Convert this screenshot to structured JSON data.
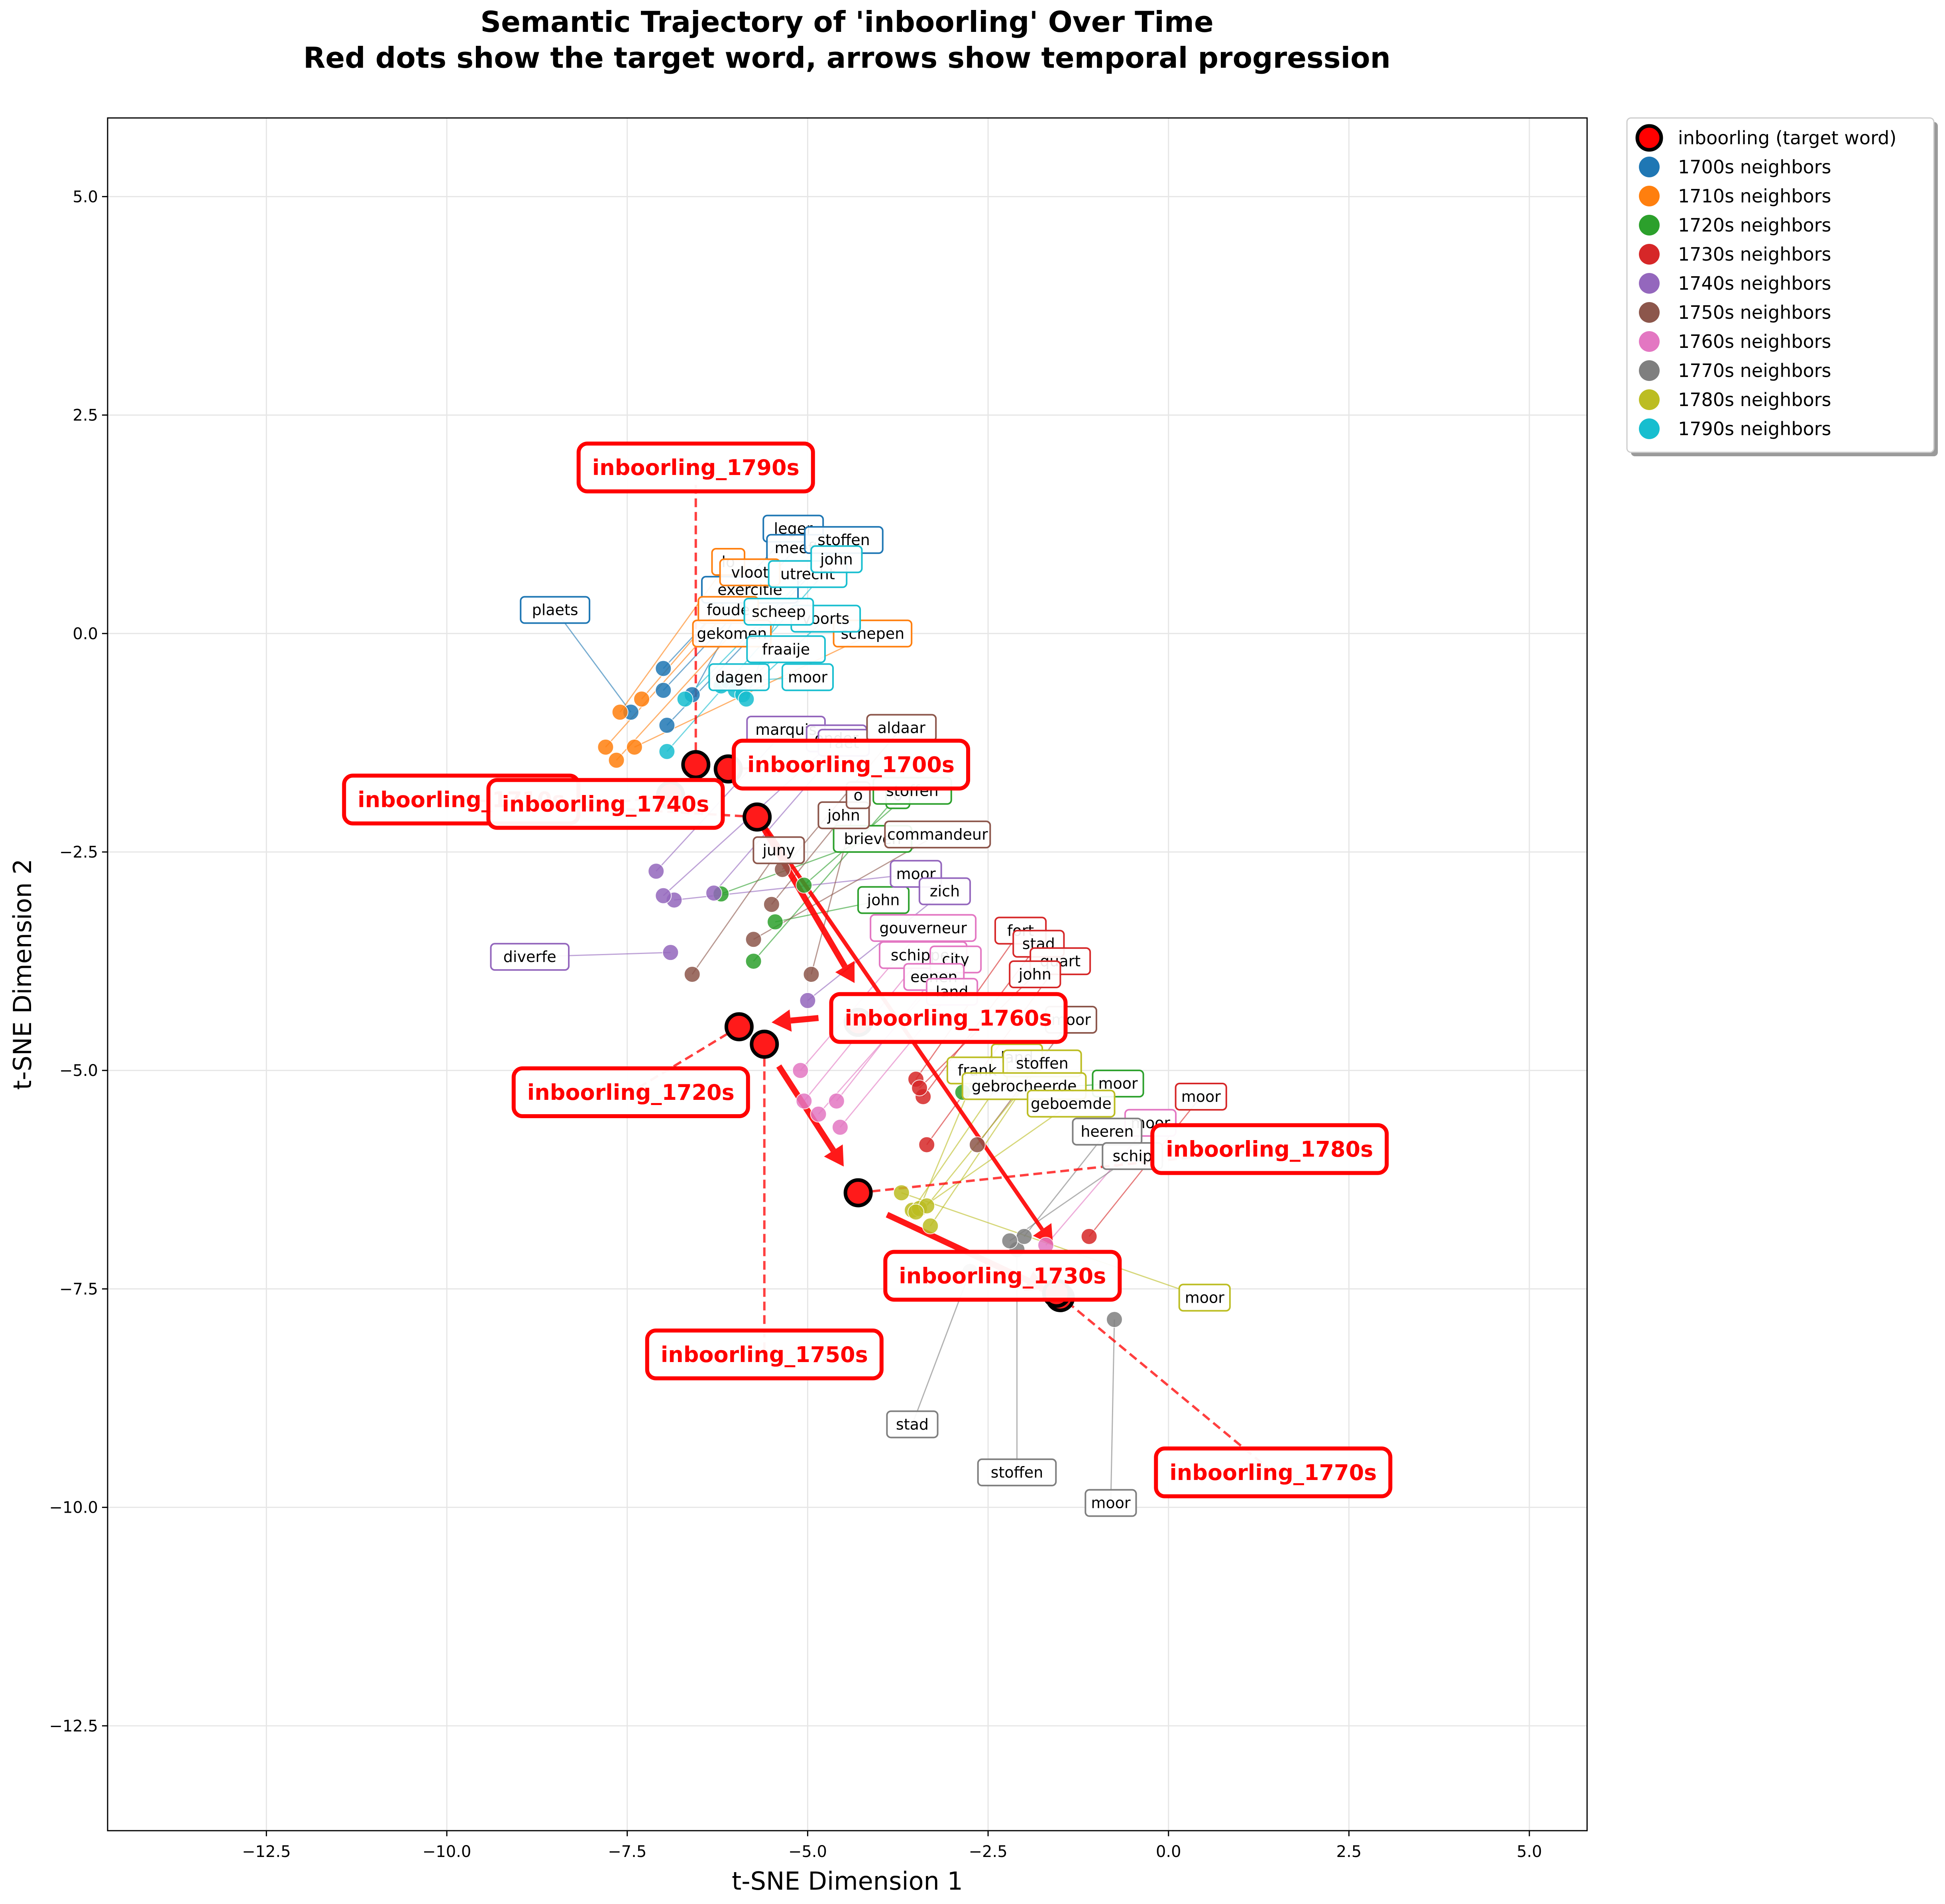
{
  "chart_data": {
    "type": "scatter",
    "title_line1": "Semantic Trajectory of 'inboorling' Over Time",
    "title_line2": "Red dots show the target word, arrows show temporal progression",
    "xlabel": "t-SNE Dimension 1",
    "ylabel": "t-SNE Dimension 2",
    "xlim": [
      -14.7,
      5.8
    ],
    "ylim": [
      -13.7,
      5.9
    ],
    "xticks": [
      -12.5,
      -10.0,
      -7.5,
      -5.0,
      -2.5,
      0.0,
      2.5,
      5.0
    ],
    "xtick_labels": [
      "−12.5",
      "−10.0",
      "−7.5",
      "−5.0",
      "−2.5",
      "0.0",
      "2.5",
      "5.0"
    ],
    "yticks": [
      5.0,
      2.5,
      0.0,
      -2.5,
      -5.0,
      -7.5,
      -10.0,
      -12.5
    ],
    "ytick_labels": [
      "5.0",
      "2.5",
      "0.0",
      "−2.5",
      "−5.0",
      "−7.5",
      "−10.0",
      "−12.5"
    ],
    "grid": true,
    "legend_position": "outside-right",
    "legend": [
      {
        "label": "inboorling (target word)",
        "color": "#ff0000",
        "edge": "#000000",
        "kind": "target"
      },
      {
        "label": "1700s neighbors",
        "color": "#1f77b4"
      },
      {
        "label": "1710s neighbors",
        "color": "#ff7f0e"
      },
      {
        "label": "1720s neighbors",
        "color": "#2ca02c"
      },
      {
        "label": "1730s neighbors",
        "color": "#d62728"
      },
      {
        "label": "1740s neighbors",
        "color": "#9467bd"
      },
      {
        "label": "1750s neighbors",
        "color": "#8c564b"
      },
      {
        "label": "1760s neighbors",
        "color": "#e377c2"
      },
      {
        "label": "1770s neighbors",
        "color": "#7f7f7f"
      },
      {
        "label": "1780s neighbors",
        "color": "#bcbd22"
      },
      {
        "label": "1790s neighbors",
        "color": "#17becf"
      }
    ],
    "target_points": [
      {
        "decade": "1700s",
        "x": -6.1,
        "y": -1.55,
        "label": "inboorling_1700s",
        "label_x": -4.4,
        "label_y": -1.5
      },
      {
        "decade": "1710s",
        "x": -5.7,
        "y": -2.1,
        "label": "inboorling_1710s",
        "label_x": -9.8,
        "label_y": -1.9
      },
      {
        "decade": "1720s",
        "x": -5.95,
        "y": -4.5,
        "label": "inboorling_1720s",
        "label_x": -7.45,
        "label_y": -5.25
      },
      {
        "decade": "1730s",
        "x": -1.5,
        "y": -7.6,
        "label": "inboorling_1730s",
        "label_x": -2.3,
        "label_y": -7.35
      },
      {
        "decade": "1740s",
        "x": -6.9,
        "y": -1.85,
        "label": "inboorling_1740s",
        "label_x": -7.8,
        "label_y": -1.95
      },
      {
        "decade": "1750s",
        "x": -5.6,
        "y": -4.7,
        "label": "inboorling_1750s",
        "label_x": -5.6,
        "label_y": -8.25
      },
      {
        "decade": "1760s",
        "x": -4.3,
        "y": -4.45,
        "label": "inboorling_1760s",
        "label_x": -3.05,
        "label_y": -4.4
      },
      {
        "decade": "1770s",
        "x": -1.55,
        "y": -7.55,
        "label": "inboorling_1770s",
        "label_x": 1.45,
        "label_y": -9.6
      },
      {
        "decade": "1780s",
        "x": -4.3,
        "y": -6.4,
        "label": "inboorling_1780s",
        "label_x": 1.4,
        "label_y": -5.9
      },
      {
        "decade": "1790s",
        "x": -6.55,
        "y": -1.5,
        "label": "inboorling_1790s",
        "label_x": -6.55,
        "label_y": 1.9
      }
    ],
    "arrows": [
      {
        "from": [
          -5.7,
          -2.1
        ],
        "to": [
          -4.35,
          -4.0
        ],
        "width": 3
      },
      {
        "from": [
          -4.85,
          -4.4
        ],
        "to": [
          -5.5,
          -4.45
        ],
        "width": 3
      },
      {
        "from": [
          -5.4,
          -4.95
        ],
        "to": [
          -4.5,
          -6.1
        ],
        "width": 3
      },
      {
        "from": [
          -3.9,
          -6.65
        ],
        "to": [
          -1.7,
          -7.5
        ],
        "width": 3
      },
      {
        "from": [
          -5.6,
          -2.2
        ],
        "to": [
          -1.6,
          -7.0
        ],
        "width": 2
      }
    ],
    "series": [
      {
        "name": "1700s neighbors",
        "color": "#1f77b4",
        "points": [
          {
            "x": -7.0,
            "y": -0.4,
            "label": "leger",
            "lx": -5.2,
            "ly": 1.2
          },
          {
            "x": -7.0,
            "y": -0.65,
            "label": "meeft",
            "lx": -5.15,
            "ly": 0.98
          },
          {
            "x": -6.95,
            "y": -1.05,
            "label": "stoffen",
            "lx": -4.5,
            "ly": 1.07
          },
          {
            "x": -7.45,
            "y": -0.9,
            "label": "plaets",
            "lx": -8.5,
            "ly": 0.27
          },
          {
            "x": -6.6,
            "y": -0.7,
            "label": "exercitie",
            "lx": -5.8,
            "ly": 0.5
          }
        ]
      },
      {
        "name": "1710s neighbors",
        "color": "#ff7f0e",
        "points": [
          {
            "x": -7.6,
            "y": -0.9,
            "label": "lo",
            "lx": -6.1,
            "ly": 0.82
          },
          {
            "x": -7.3,
            "y": -0.75,
            "label": "vloot",
            "lx": -5.8,
            "ly": 0.7
          },
          {
            "x": -7.8,
            "y": -1.3,
            "label": "foude",
            "lx": -6.1,
            "ly": 0.27
          },
          {
            "x": -7.65,
            "y": -1.45,
            "label": "gekomen",
            "lx": -6.05,
            "ly": 0.0
          },
          {
            "x": -7.4,
            "y": -1.3,
            "label": "schepen",
            "lx": -4.1,
            "ly": 0.0
          }
        ]
      },
      {
        "name": "1720s neighbors",
        "color": "#2ca02c",
        "points": [
          {
            "x": -6.2,
            "y": -2.98,
            "label": "brieven",
            "lx": -4.1,
            "ly": -2.35
          },
          {
            "x": -5.45,
            "y": -3.3,
            "label": "john",
            "lx": -3.95,
            "ly": -3.05
          },
          {
            "x": -5.75,
            "y": -3.75,
            "label": "o",
            "lx": -3.75,
            "ly": -1.85
          },
          {
            "x": -5.05,
            "y": -2.88,
            "label": "stoffen",
            "lx": -3.55,
            "ly": -1.8
          },
          {
            "x": -2.85,
            "y": -5.25,
            "label": "moor",
            "lx": -0.7,
            "ly": -5.15
          }
        ]
      },
      {
        "name": "1730s neighbors",
        "color": "#d62728",
        "points": [
          {
            "x": -3.5,
            "y": -5.1,
            "label": "fort",
            "lx": -2.05,
            "ly": -3.4
          },
          {
            "x": -3.4,
            "y": -5.3,
            "label": "stad",
            "lx": -1.8,
            "ly": -3.55
          },
          {
            "x": -3.35,
            "y": -5.85,
            "label": "quart",
            "lx": -1.5,
            "ly": -3.75
          },
          {
            "x": -3.45,
            "y": -5.2,
            "label": "john",
            "lx": -1.85,
            "ly": -3.9
          },
          {
            "x": -1.1,
            "y": -6.9,
            "label": "moor",
            "lx": 0.45,
            "ly": -5.3
          }
        ]
      },
      {
        "name": "1740s neighbors",
        "color": "#9467bd",
        "points": [
          {
            "x": -7.1,
            "y": -2.72,
            "label": "marquis",
            "lx": -5.3,
            "ly": -1.1
          },
          {
            "x": -6.85,
            "y": -3.05,
            "label": "moor",
            "lx": -3.5,
            "ly": -2.75
          },
          {
            "x": -6.9,
            "y": -3.65,
            "label": "diverfe",
            "lx": -8.85,
            "ly": -3.7
          },
          {
            "x": -7.0,
            "y": -3.0,
            "label": "onder",
            "lx": -4.6,
            "ly": -1.2
          },
          {
            "x": -6.3,
            "y": -2.97,
            "label": "raet",
            "lx": -4.5,
            "ly": -1.25
          },
          {
            "x": -5.0,
            "y": -4.2,
            "label": "zich",
            "lx": -3.1,
            "ly": -2.95
          }
        ]
      },
      {
        "name": "1750s neighbors",
        "color": "#8c564b",
        "points": [
          {
            "x": -5.35,
            "y": -2.7,
            "label": "aldaar",
            "lx": -3.7,
            "ly": -1.08
          },
          {
            "x": -5.5,
            "y": -3.1,
            "label": "john",
            "lx": -4.5,
            "ly": -2.08
          },
          {
            "x": -5.75,
            "y": -3.5,
            "label": "commandeur",
            "lx": -3.2,
            "ly": -2.3
          },
          {
            "x": -6.6,
            "y": -3.9,
            "label": "juny",
            "lx": -5.4,
            "ly": -2.48
          },
          {
            "x": -4.95,
            "y": -3.9,
            "label": "o",
            "lx": -4.3,
            "ly": -1.85
          },
          {
            "x": -2.65,
            "y": -5.85,
            "label": "moor",
            "lx": -1.35,
            "ly": -4.42
          }
        ]
      },
      {
        "name": "1760s neighbors",
        "color": "#e377c2",
        "points": [
          {
            "x": -5.1,
            "y": -5.0,
            "label": "gouverneur",
            "lx": -3.4,
            "ly": -3.37
          },
          {
            "x": -5.05,
            "y": -5.35,
            "label": "schipper",
            "lx": -3.4,
            "ly": -3.68
          },
          {
            "x": -4.85,
            "y": -5.5,
            "label": "city",
            "lx": -2.95,
            "ly": -3.73
          },
          {
            "x": -4.6,
            "y": -5.35,
            "label": "eenen",
            "lx": -3.25,
            "ly": -3.93
          },
          {
            "x": -4.55,
            "y": -5.65,
            "label": "land",
            "lx": -3.0,
            "ly": -4.1
          },
          {
            "x": -1.7,
            "y": -7.0,
            "label": "moor",
            "lx": -0.25,
            "ly": -5.6
          }
        ]
      },
      {
        "name": "1770s neighbors",
        "color": "#7f7f7f",
        "points": [
          {
            "x": -0.75,
            "y": -7.85,
            "label": "moor",
            "lx": -0.8,
            "ly": -9.95
          },
          {
            "x": -2.1,
            "y": -7.05,
            "label": "stoffen",
            "lx": -2.1,
            "ly": -9.6
          },
          {
            "x": -2.75,
            "y": -7.3,
            "label": "stad",
            "lx": -3.55,
            "ly": -9.05
          },
          {
            "x": -2.0,
            "y": -6.9,
            "label": "heeren",
            "lx": -0.85,
            "ly": -5.7
          },
          {
            "x": -2.2,
            "y": -6.95,
            "label": "schip",
            "lx": -0.5,
            "ly": -5.98
          }
        ]
      },
      {
        "name": "1780s neighbors",
        "color": "#bcbd22",
        "points": [
          {
            "x": -3.7,
            "y": -6.4,
            "label": "moor",
            "lx": 0.5,
            "ly": -7.6
          },
          {
            "x": -3.55,
            "y": -6.6,
            "label": "land",
            "lx": -2.1,
            "ly": -4.85
          },
          {
            "x": -3.45,
            "y": -6.58,
            "label": "frank",
            "lx": -2.65,
            "ly": -5.0
          },
          {
            "x": -3.35,
            "y": -6.55,
            "label": "stoffen",
            "lx": -1.75,
            "ly": -4.92
          },
          {
            "x": -3.3,
            "y": -6.78,
            "label": "gebrocheerde",
            "lx": -2.0,
            "ly": -5.18
          },
          {
            "x": -3.5,
            "y": -6.62,
            "label": "geboemde",
            "lx": -1.35,
            "ly": -5.38
          }
        ]
      },
      {
        "name": "1790s neighbors",
        "color": "#17becf",
        "points": [
          {
            "x": -6.7,
            "y": -0.75,
            "label": "utrecht",
            "lx": -5.0,
            "ly": 0.68
          },
          {
            "x": -6.95,
            "y": -1.35,
            "label": "john",
            "lx": -4.6,
            "ly": 0.85
          },
          {
            "x": -6.2,
            "y": -0.6,
            "label": "dagen",
            "lx": -5.95,
            "ly": -0.5
          },
          {
            "x": -6.1,
            "y": -0.55,
            "label": "moor",
            "lx": -5.0,
            "ly": -0.5
          },
          {
            "x": -6.0,
            "y": -0.65,
            "label": "fraaije",
            "lx": -5.3,
            "ly": -0.18
          },
          {
            "x": -5.9,
            "y": -0.7,
            "label": "voorts",
            "lx": -4.75,
            "ly": 0.17
          },
          {
            "x": -5.85,
            "y": -0.75,
            "label": "scheep",
            "lx": -5.4,
            "ly": 0.25
          }
        ]
      }
    ]
  }
}
